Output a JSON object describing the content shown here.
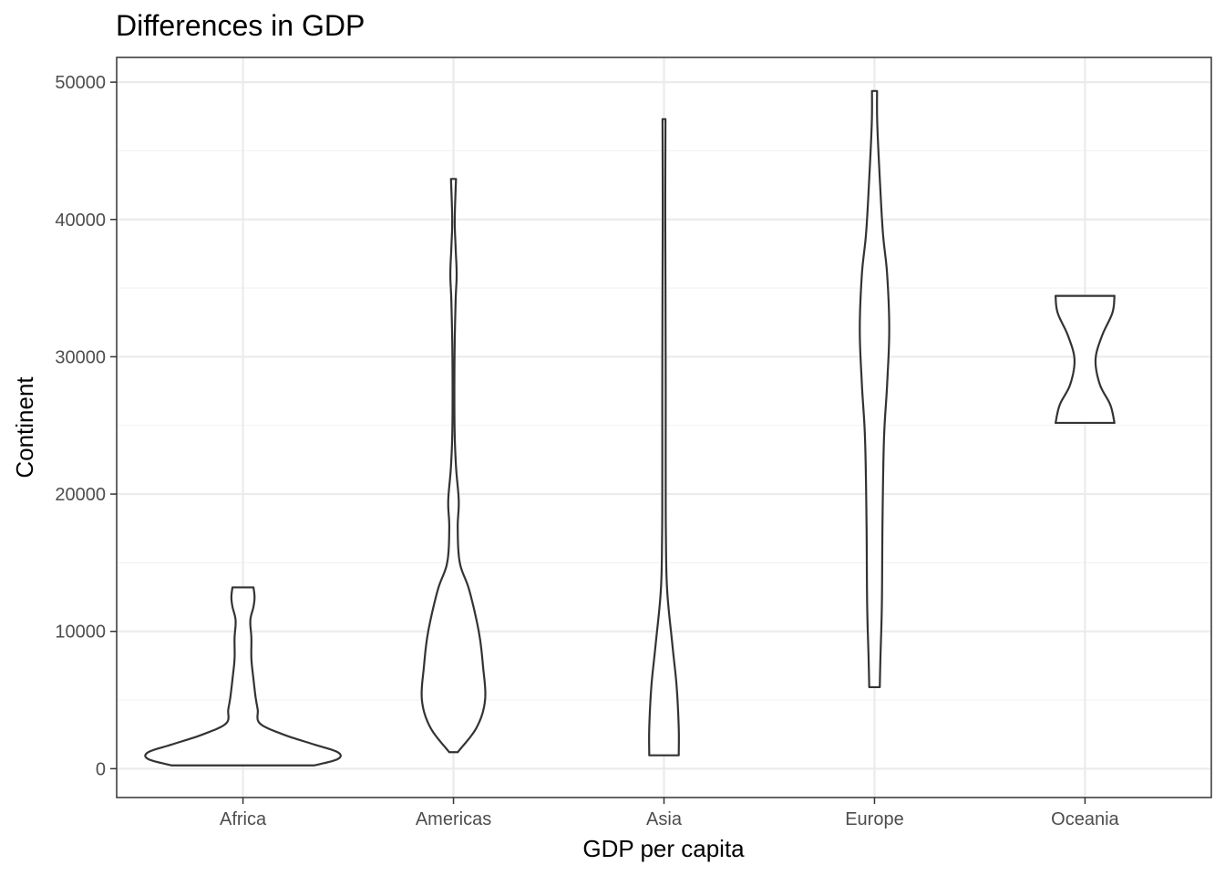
{
  "chart_data": {
    "type": "violin",
    "title": "Differences in GDP",
    "xlabel": "GDP per capita",
    "ylabel": "Continent",
    "categories": [
      "Africa",
      "Americas",
      "Asia",
      "Europe",
      "Oceania"
    ],
    "ylim": [
      -2100,
      51800
    ],
    "yticks": [
      0,
      10000,
      20000,
      30000,
      40000,
      50000
    ],
    "yticklabels": [
      "0",
      "10000",
      "20000",
      "30000",
      "40000",
      "50000"
    ],
    "grid": true,
    "legend": "none",
    "series": [
      {
        "category": "Africa",
        "range": [
          241,
          13206
        ],
        "profile": [
          {
            "y": 241,
            "w": 0.34
          },
          {
            "y": 700,
            "w": 0.45
          },
          {
            "y": 1200,
            "w": 0.45
          },
          {
            "y": 1800,
            "w": 0.33
          },
          {
            "y": 2500,
            "w": 0.19
          },
          {
            "y": 3300,
            "w": 0.08
          },
          {
            "y": 4300,
            "w": 0.07
          },
          {
            "y": 5200,
            "w": 0.06
          },
          {
            "y": 6500,
            "w": 0.05
          },
          {
            "y": 8000,
            "w": 0.04
          },
          {
            "y": 9500,
            "w": 0.04
          },
          {
            "y": 10800,
            "w": 0.035
          },
          {
            "y": 11800,
            "w": 0.05
          },
          {
            "y": 12500,
            "w": 0.055
          },
          {
            "y": 13206,
            "w": 0.05
          }
        ]
      },
      {
        "category": "Americas",
        "range": [
          1202,
          42952
        ],
        "profile": [
          {
            "y": 1202,
            "w": 0.02
          },
          {
            "y": 3000,
            "w": 0.11
          },
          {
            "y": 5000,
            "w": 0.15
          },
          {
            "y": 7500,
            "w": 0.14
          },
          {
            "y": 10000,
            "w": 0.12
          },
          {
            "y": 13000,
            "w": 0.075
          },
          {
            "y": 15000,
            "w": 0.03
          },
          {
            "y": 17500,
            "w": 0.02
          },
          {
            "y": 19500,
            "w": 0.025
          },
          {
            "y": 22000,
            "w": 0.012
          },
          {
            "y": 25000,
            "w": 0.005
          },
          {
            "y": 30000,
            "w": 0.005
          },
          {
            "y": 34000,
            "w": 0.01
          },
          {
            "y": 36000,
            "w": 0.015
          },
          {
            "y": 38000,
            "w": 0.01
          },
          {
            "y": 40000,
            "w": 0.006
          },
          {
            "y": 42952,
            "w": 0.012
          }
        ]
      },
      {
        "category": "Asia",
        "range": [
          974,
          47307
        ],
        "profile": [
          {
            "y": 974,
            "w": 0.07
          },
          {
            "y": 3000,
            "w": 0.07
          },
          {
            "y": 6000,
            "w": 0.06
          },
          {
            "y": 9000,
            "w": 0.04
          },
          {
            "y": 13000,
            "w": 0.015
          },
          {
            "y": 17000,
            "w": 0.009
          },
          {
            "y": 22000,
            "w": 0.008
          },
          {
            "y": 28000,
            "w": 0.008
          },
          {
            "y": 35000,
            "w": 0.007
          },
          {
            "y": 41000,
            "w": 0.006
          },
          {
            "y": 47307,
            "w": 0.007
          }
        ]
      },
      {
        "category": "Europe",
        "range": [
          5937,
          49357
        ],
        "profile": [
          {
            "y": 5937,
            "w": 0.025
          },
          {
            "y": 8000,
            "w": 0.028
          },
          {
            "y": 12000,
            "w": 0.035
          },
          {
            "y": 18000,
            "w": 0.038
          },
          {
            "y": 24000,
            "w": 0.045
          },
          {
            "y": 28000,
            "w": 0.06
          },
          {
            "y": 32000,
            "w": 0.07
          },
          {
            "y": 36000,
            "w": 0.06
          },
          {
            "y": 39000,
            "w": 0.04
          },
          {
            "y": 43000,
            "w": 0.025
          },
          {
            "y": 47000,
            "w": 0.013
          },
          {
            "y": 49357,
            "w": 0.012
          }
        ]
      },
      {
        "category": "Oceania",
        "range": [
          25185,
          34435
        ],
        "profile": [
          {
            "y": 25185,
            "w": 0.14
          },
          {
            "y": 26500,
            "w": 0.12
          },
          {
            "y": 28000,
            "w": 0.07
          },
          {
            "y": 29800,
            "w": 0.05
          },
          {
            "y": 31500,
            "w": 0.08
          },
          {
            "y": 33200,
            "w": 0.13
          },
          {
            "y": 34435,
            "w": 0.14
          }
        ]
      }
    ]
  }
}
